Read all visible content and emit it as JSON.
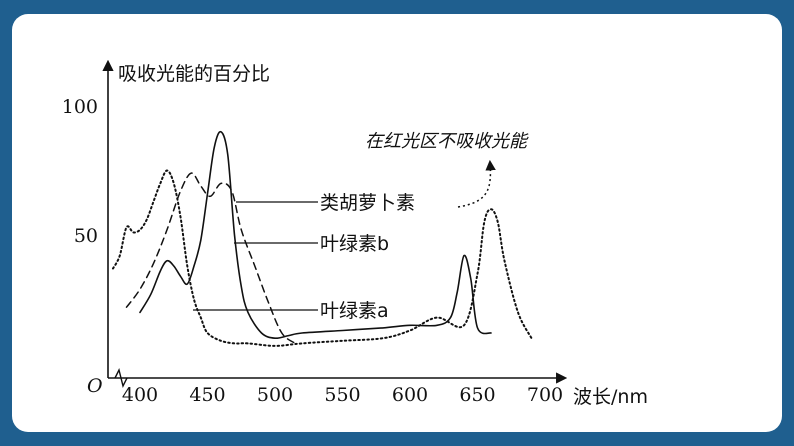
{
  "chart_data": {
    "type": "line",
    "ylabel": "吸收光能的百分比",
    "xlabel": "波长/nm",
    "origin_label": "O",
    "xlim": [
      380,
      700
    ],
    "ylim": [
      0,
      100
    ],
    "xticks": [
      "400",
      "450",
      "500",
      "550",
      "600",
      "650",
      "700"
    ],
    "yticks": [
      "100",
      "50"
    ],
    "annotation": "在红光区不吸收光能",
    "series": [
      {
        "name": "类胡萝卜素",
        "style": "dashed",
        "x": [
          390,
          400,
          410,
          420,
          430,
          438,
          445,
          452,
          460,
          468,
          475,
          485,
          495,
          505,
          515
        ],
        "y": [
          22,
          29,
          39,
          52,
          67,
          74,
          69,
          65,
          70,
          67,
          52,
          38,
          24,
          12,
          8
        ]
      },
      {
        "name": "叶绿素b",
        "style": "solid",
        "x": [
          400,
          408,
          415,
          420,
          425,
          430,
          435,
          440,
          445,
          450,
          455,
          460,
          465,
          470,
          475,
          480,
          490,
          500,
          510,
          520,
          550,
          580,
          600,
          620,
          630,
          635,
          640,
          645,
          650,
          660
        ],
        "y": [
          20,
          27,
          36,
          40,
          38,
          34,
          31,
          38,
          48,
          66,
          84,
          90,
          81,
          50,
          30,
          20,
          12,
          10,
          11,
          12,
          13,
          14,
          15,
          15,
          18,
          28,
          42,
          33,
          14,
          12
        ]
      },
      {
        "name": "叶绿素a",
        "style": "dotted",
        "x": [
          380,
          385,
          390,
          395,
          400,
          405,
          410,
          415,
          420,
          425,
          430,
          435,
          440,
          445,
          450,
          460,
          470,
          480,
          500,
          520,
          550,
          580,
          600,
          620,
          640,
          650,
          655,
          660,
          665,
          670,
          680,
          690
        ],
        "y": [
          37,
          42,
          53,
          51,
          52,
          56,
          63,
          70,
          75,
          70,
          57,
          38,
          25,
          18,
          12,
          9,
          8,
          8,
          7,
          8,
          9,
          10,
          13,
          18,
          15,
          35,
          55,
          60,
          55,
          40,
          20,
          10
        ]
      }
    ],
    "labels": [
      {
        "series": "类胡萝卜素",
        "text": "类胡萝卜素"
      },
      {
        "series": "叶绿素b",
        "text": "叶绿素b"
      },
      {
        "series": "叶绿素a",
        "text": "叶绿素a"
      }
    ]
  }
}
